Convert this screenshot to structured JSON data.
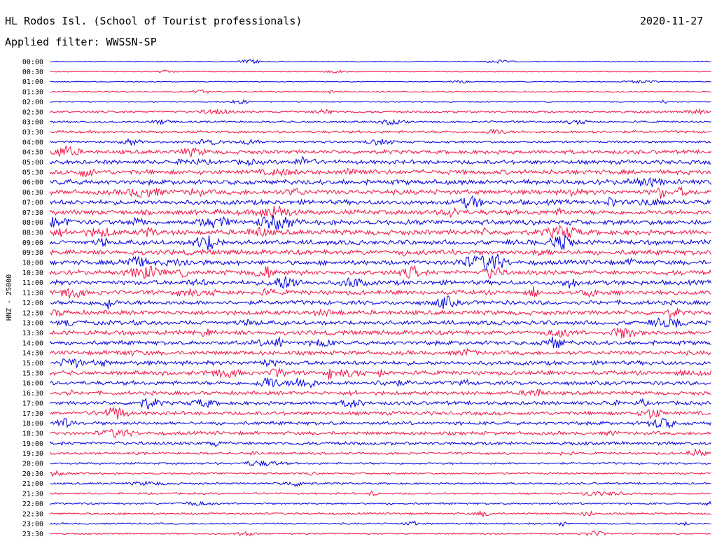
{
  "header": {
    "station": "HL Rodos Isl. (School of Tourist professionals)",
    "date": "2020-11-27",
    "filter_label": "Applied filter: WWSSN-SP"
  },
  "chart_data": {
    "type": "line",
    "subtype": "helicorder",
    "title": "HL Rodos Isl. (School of Tourist professionals)",
    "date": "2020-11-27",
    "filter": "WWSSN-SP",
    "ylabel": "HNZ - 25000",
    "row_labels": [
      "00:00",
      "00:30",
      "01:00",
      "01:30",
      "02:00",
      "02:30",
      "03:00",
      "03:30",
      "04:00",
      "04:30",
      "05:00",
      "05:30",
      "06:00",
      "06:30",
      "07:00",
      "07:30",
      "08:00",
      "08:30",
      "09:00",
      "09:30",
      "10:00",
      "10:30",
      "11:00",
      "11:30",
      "12:00",
      "12:30",
      "13:00",
      "13:30",
      "14:00",
      "14:30",
      "15:00",
      "15:30",
      "16:00",
      "16:30",
      "17:00",
      "17:30",
      "18:00",
      "18:30",
      "19:00",
      "19:30",
      "20:00",
      "20:30",
      "21:00",
      "21:30",
      "22:00",
      "22:30",
      "23:00",
      "23:30"
    ],
    "row_colors": [
      "#0000dd",
      "#ee1144"
    ],
    "relative_noise_level": [
      0.1,
      0.06,
      0.06,
      0.15,
      0.15,
      0.35,
      0.3,
      0.45,
      0.35,
      0.75,
      0.8,
      0.9,
      0.95,
      0.95,
      0.95,
      0.95,
      1.0,
      1.0,
      0.95,
      0.95,
      0.9,
      0.9,
      0.9,
      0.85,
      0.85,
      0.85,
      0.85,
      0.85,
      0.8,
      0.8,
      0.8,
      0.8,
      0.75,
      0.7,
      0.7,
      0.7,
      0.65,
      0.65,
      0.6,
      0.4,
      0.35,
      0.3,
      0.3,
      0.3,
      0.3,
      0.3,
      0.25,
      0.2
    ]
  }
}
